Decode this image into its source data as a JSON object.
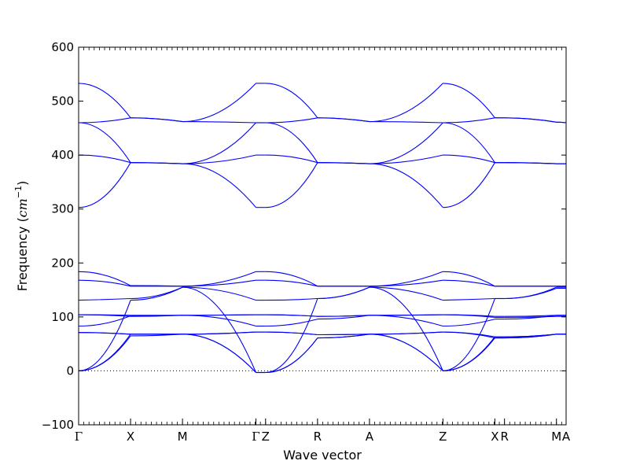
{
  "chart_data": {
    "type": "line",
    "title": "",
    "xlabel": "Wave vector",
    "ylabel": "Frequency (cm⁻¹)",
    "ylabel_text": "Frequency (",
    "ylabel_unit": "cm",
    "ylabel_exp": "−1",
    "ylabel_close": ")",
    "ylim": [
      -100,
      600
    ],
    "y_ticks": [
      -100,
      0,
      100,
      200,
      300,
      400,
      500,
      600
    ],
    "grid": false,
    "legend": "none",
    "line_color": "#0000ff",
    "zero_line_color": "#000000",
    "high_symmetry_points": [
      {
        "label": "Γ",
        "x": 0.0
      },
      {
        "label": "X",
        "x": 1.0
      },
      {
        "label": "M",
        "x": 2.0
      },
      {
        "label": "Γ",
        "x": 3.414
      },
      {
        "label": "Z",
        "x": 3.6
      },
      {
        "label": "R",
        "x": 4.6
      },
      {
        "label": "A",
        "x": 5.6
      },
      {
        "label": "Z",
        "x": 7.014
      },
      {
        "label": "X",
        "x": 8.014
      },
      {
        "label": "R",
        "x": 8.2
      },
      {
        "label": "M",
        "x": 9.2
      },
      {
        "label": "A",
        "x": 9.386
      }
    ],
    "segments": [
      {
        "x0": 0.0,
        "x1": 1.0,
        "bands": [
          [
            0,
            0,
            65
          ],
          [
            0,
            0,
            68
          ],
          [
            0,
            0,
            131
          ],
          [
            71,
            71,
            68
          ],
          [
            71,
            71,
            68
          ],
          [
            83,
            83,
            102
          ],
          [
            104,
            104,
            101
          ],
          [
            104,
            104,
            103
          ],
          [
            131,
            132,
            134
          ],
          [
            168,
            168,
            157
          ],
          [
            184,
            184,
            158
          ],
          [
            303,
            303,
            386
          ],
          [
            400,
            400,
            386
          ],
          [
            460,
            460,
            469
          ],
          [
            460,
            460,
            386
          ],
          [
            533,
            533,
            469
          ]
        ]
      },
      {
        "x0": 1.0,
        "x1": 2.0,
        "bands": [
          [
            65,
            65,
            68
          ],
          [
            68,
            68,
            68
          ],
          [
            131,
            131,
            155
          ],
          [
            68,
            68,
            68
          ],
          [
            68,
            68,
            68
          ],
          [
            102,
            102,
            103
          ],
          [
            101,
            101,
            103
          ],
          [
            103,
            103,
            103
          ],
          [
            134,
            134,
            155
          ],
          [
            157,
            157,
            157
          ],
          [
            158,
            158,
            157
          ],
          [
            386,
            386,
            384
          ],
          [
            386,
            386,
            384
          ],
          [
            469,
            469,
            462
          ],
          [
            386,
            386,
            384
          ],
          [
            469,
            469,
            462
          ]
        ]
      },
      {
        "x0": 2.0,
        "x1": 3.414,
        "bands": [
          [
            68,
            68,
            -3
          ],
          [
            68,
            68,
            -3
          ],
          [
            155,
            155,
            -3
          ],
          [
            68,
            68,
            72
          ],
          [
            68,
            68,
            72
          ],
          [
            103,
            103,
            83
          ],
          [
            103,
            103,
            104
          ],
          [
            103,
            103,
            104
          ],
          [
            155,
            155,
            131
          ],
          [
            157,
            157,
            168
          ],
          [
            157,
            157,
            184
          ],
          [
            384,
            384,
            303
          ],
          [
            384,
            384,
            400
          ],
          [
            462,
            462,
            533
          ],
          [
            384,
            384,
            460
          ],
          [
            462,
            462,
            460
          ]
        ]
      },
      {
        "x0": 3.6,
        "x1": 4.6,
        "bands": [
          [
            -3,
            -3,
            61
          ],
          [
            -3,
            -3,
            61
          ],
          [
            -3,
            -3,
            134
          ],
          [
            72,
            72,
            67
          ],
          [
            72,
            72,
            67
          ],
          [
            83,
            83,
            96
          ],
          [
            104,
            104,
            101
          ],
          [
            104,
            104,
            101
          ],
          [
            131,
            131,
            134
          ],
          [
            168,
            168,
            157
          ],
          [
            184,
            184,
            157
          ],
          [
            303,
            303,
            386
          ],
          [
            400,
            400,
            386
          ],
          [
            533,
            533,
            469
          ],
          [
            460,
            460,
            386
          ],
          [
            460,
            460,
            469
          ]
        ]
      },
      {
        "x0": 4.6,
        "x1": 5.6,
        "bands": [
          [
            61,
            61,
            68
          ],
          [
            61,
            61,
            68
          ],
          [
            134,
            134,
            155
          ],
          [
            67,
            67,
            68
          ],
          [
            67,
            67,
            68
          ],
          [
            96,
            96,
            103
          ],
          [
            101,
            101,
            103
          ],
          [
            101,
            101,
            103
          ],
          [
            134,
            134,
            155
          ],
          [
            157,
            157,
            157
          ],
          [
            157,
            157,
            157
          ],
          [
            386,
            386,
            384
          ],
          [
            386,
            386,
            384
          ],
          [
            469,
            469,
            462
          ],
          [
            386,
            386,
            384
          ],
          [
            469,
            469,
            462
          ]
        ]
      },
      {
        "x0": 5.6,
        "x1": 7.014,
        "bands": [
          [
            68,
            68,
            0
          ],
          [
            68,
            68,
            0
          ],
          [
            155,
            155,
            0
          ],
          [
            68,
            68,
            72
          ],
          [
            68,
            68,
            72
          ],
          [
            103,
            103,
            83
          ],
          [
            103,
            103,
            104
          ],
          [
            103,
            103,
            104
          ],
          [
            155,
            155,
            131
          ],
          [
            157,
            157,
            168
          ],
          [
            157,
            157,
            184
          ],
          [
            384,
            384,
            303
          ],
          [
            384,
            384,
            400
          ],
          [
            462,
            462,
            533
          ],
          [
            384,
            384,
            460
          ],
          [
            462,
            462,
            460
          ]
        ]
      },
      {
        "x0": 7.014,
        "x1": 8.014,
        "bands": [
          [
            0,
            0,
            61
          ],
          [
            0,
            0,
            63
          ],
          [
            0,
            0,
            134
          ],
          [
            72,
            72,
            63
          ],
          [
            72,
            72,
            61
          ],
          [
            83,
            83,
            96
          ],
          [
            104,
            104,
            99
          ],
          [
            104,
            104,
            101
          ],
          [
            131,
            132,
            134
          ],
          [
            168,
            168,
            157
          ],
          [
            184,
            184,
            157
          ],
          [
            303,
            303,
            386
          ],
          [
            400,
            400,
            386
          ],
          [
            533,
            533,
            469
          ],
          [
            460,
            460,
            386
          ],
          [
            460,
            460,
            469
          ]
        ]
      },
      {
        "x0": 8.2,
        "x1": 9.2,
        "bands": [
          [
            61,
            61,
            68
          ],
          [
            63,
            63,
            68
          ],
          [
            134,
            134,
            155
          ],
          [
            63,
            63,
            68
          ],
          [
            61,
            61,
            68
          ],
          [
            96,
            96,
            103
          ],
          [
            99,
            99,
            101
          ],
          [
            101,
            101,
            103
          ],
          [
            134,
            134,
            153
          ],
          [
            157,
            157,
            157
          ],
          [
            157,
            157,
            157
          ],
          [
            386,
            386,
            384
          ],
          [
            386,
            386,
            384
          ],
          [
            469,
            469,
            461
          ],
          [
            386,
            386,
            384
          ],
          [
            469,
            469,
            461
          ]
        ]
      },
      {
        "x0": 9.2,
        "x1": 9.386,
        "bands": [
          [
            68,
            68,
            68
          ],
          [
            68,
            68,
            68
          ],
          [
            155,
            155,
            155
          ],
          [
            68,
            68,
            68
          ],
          [
            68,
            68,
            68
          ],
          [
            103,
            103,
            103
          ],
          [
            101,
            101,
            101
          ],
          [
            103,
            103,
            103
          ],
          [
            153,
            153,
            153
          ],
          [
            157,
            157,
            157
          ],
          [
            157,
            157,
            157
          ],
          [
            384,
            384,
            384
          ],
          [
            384,
            384,
            384
          ],
          [
            461,
            461,
            460
          ],
          [
            384,
            384,
            384
          ],
          [
            461,
            461,
            460
          ]
        ]
      }
    ]
  }
}
